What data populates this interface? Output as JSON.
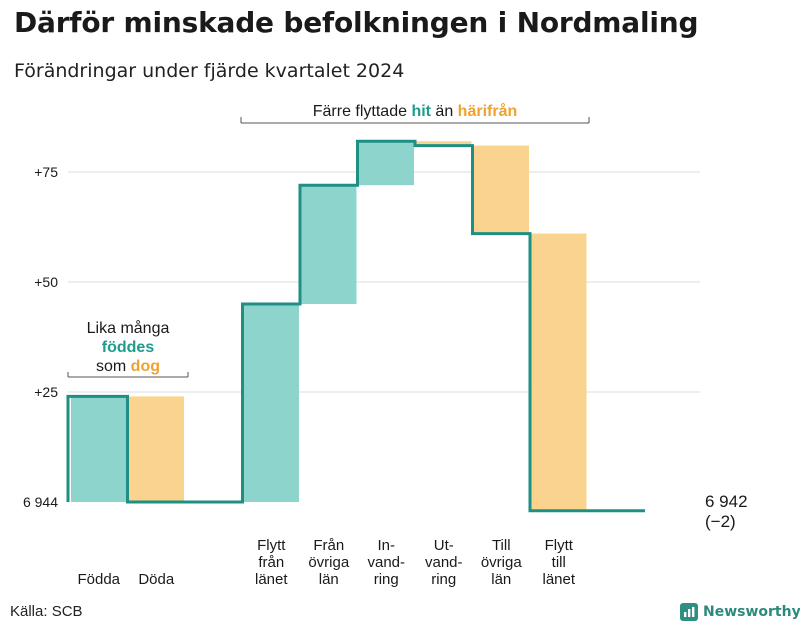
{
  "header": {
    "title": "Därför minskade befolkningen i Nordmaling",
    "subtitle": "Förändringar under fjärde kvartalet 2024"
  },
  "footer": {
    "source": "Källa: SCB",
    "brand": "Newsworthy"
  },
  "colors": {
    "inflow": "#8dd5cc",
    "outflow": "#fad48f",
    "line": "#1e8f83",
    "highlight_inflow": "#1e9c8d",
    "highlight_outflow": "#f0a22e",
    "grid": "#dddddd"
  },
  "chart_data": {
    "type": "waterfall",
    "start_value": 6944,
    "end_value": 6942,
    "end_label": "6 942",
    "end_change_label": "(−2)",
    "y_axis": {
      "ticks": [
        {
          "value": 0,
          "label": "6 944"
        },
        {
          "value": 25,
          "label": "+25"
        },
        {
          "value": 50,
          "label": "+50"
        },
        {
          "value": 75,
          "label": "+75"
        }
      ],
      "range": [
        -2,
        82
      ]
    },
    "steps": [
      {
        "label": "Födda",
        "change": 24,
        "kind": "inflow"
      },
      {
        "label": "Döda",
        "change": -24,
        "kind": "outflow"
      },
      {
        "label": "",
        "change": 0,
        "kind": "gap"
      },
      {
        "label": "Flytt\nfrån\nlänet",
        "change": 45,
        "kind": "inflow"
      },
      {
        "label": "Från\növriga\nlän",
        "change": 27,
        "kind": "inflow"
      },
      {
        "label": "In-\nvand-\nring",
        "change": 10,
        "kind": "inflow"
      },
      {
        "label": "Ut-\nvand-\nring",
        "change": -1,
        "kind": "outflow"
      },
      {
        "label": "Till\növriga\nlän",
        "change": -20,
        "kind": "outflow"
      },
      {
        "label": "Flytt\ntill\nlänet",
        "change": -63,
        "kind": "outflow"
      },
      {
        "label": "",
        "change": 0,
        "kind": "end"
      }
    ],
    "annotations": {
      "births_deaths": {
        "line1": "Lika många",
        "line2_highlight": "föddes",
        "line3_prefix": "som ",
        "line3_highlight": "dog"
      },
      "migration": {
        "prefix": "Färre flyttade ",
        "highlight_in": "hit",
        "middle": " än ",
        "highlight_out": "härifrån"
      }
    }
  }
}
